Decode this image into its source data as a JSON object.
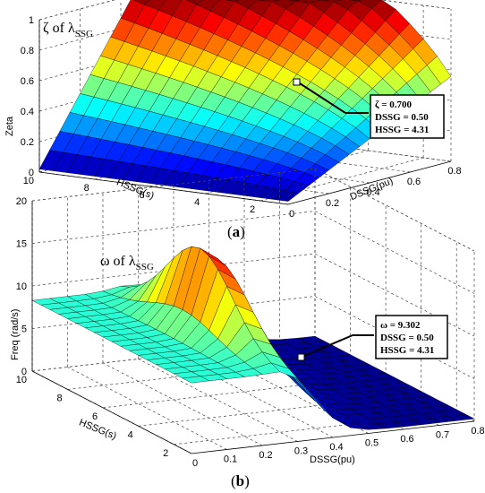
{
  "chart_data": [
    {
      "type": "surface",
      "panel_caption": "a",
      "title": {
        "prefix": "ζ of λ",
        "subscript": "SSG"
      },
      "zlabel": "Zeta",
      "xlabel": "DSSG(pu)",
      "ylabel": "HSSG(s)",
      "z_ticks": [
        "0",
        "0.2",
        "0.4",
        "0.6",
        "0.8",
        "1"
      ],
      "x_ticks": [
        "0",
        "0.2",
        "0.4",
        "0.6",
        "0.8"
      ],
      "y_ticks": [
        "10",
        "8",
        "6",
        "4",
        "2"
      ],
      "zlim": [
        0,
        1
      ],
      "xlim": [
        0,
        0.8
      ],
      "ylim": [
        1,
        10
      ],
      "colormap": "jet",
      "annotation": {
        "lines": [
          "ζ = 0.700",
          "DSSG = 0.50",
          "HSSG = 4.31"
        ],
        "point": {
          "x": 0.5,
          "y": 4.31,
          "z": 0.7
        }
      }
    },
    {
      "type": "surface",
      "panel_caption": "b",
      "title": {
        "prefix": "ω of λ",
        "subscript": "SSG"
      },
      "zlabel": "Freq (rad/s)",
      "xlabel": "DSSG(pu)",
      "ylabel": "HSSG(s)",
      "z_ticks": [
        "0",
        "5",
        "10",
        "15",
        "20"
      ],
      "x_ticks": [
        "0",
        "0.1",
        "0.2",
        "0.3",
        "0.4",
        "0.5",
        "0.6",
        "0.7",
        "0.8"
      ],
      "y_ticks": [
        "10",
        "8",
        "6",
        "4",
        "2"
      ],
      "zlim": [
        0,
        20
      ],
      "xlim": [
        0,
        0.8
      ],
      "ylim": [
        1,
        10
      ],
      "colormap": "jet",
      "annotation": {
        "lines": [
          "ω = 9.302",
          "DSSG = 0.50",
          "HSSG = 4.31"
        ],
        "point": {
          "x": 0.5,
          "y": 4.31,
          "z": 9.302
        }
      }
    }
  ]
}
